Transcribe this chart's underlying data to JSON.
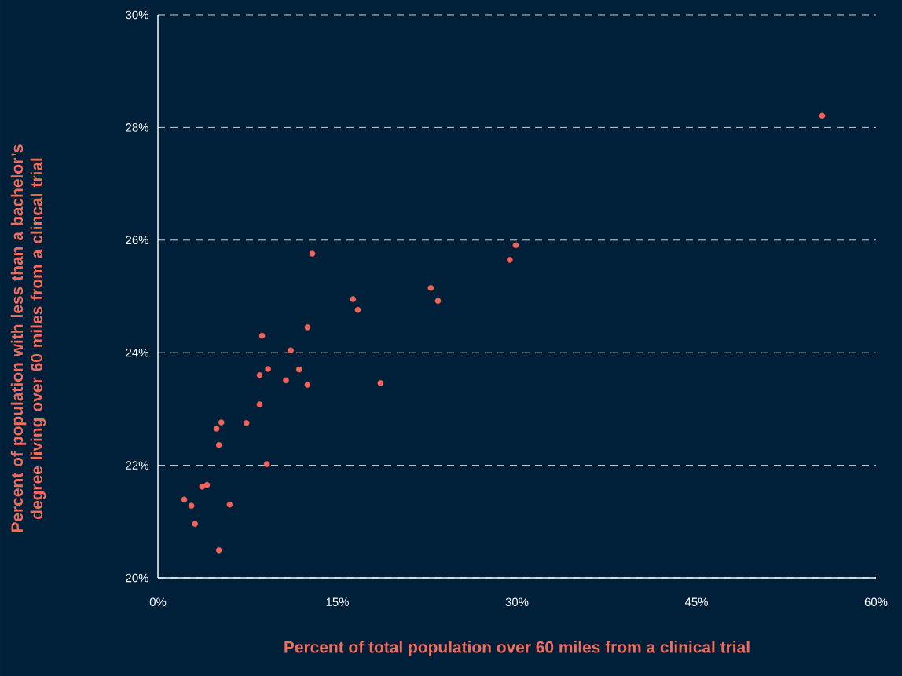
{
  "chart_data": {
    "type": "scatter",
    "xlabel": "Percent of total population over 60 miles from a clinical trial",
    "ylabel": "Percent of population with less than a bachelor’s degree living over 60 miles from a clincal trial",
    "x": [
      2.2,
      2.8,
      3.1,
      3.7,
      4.1,
      4.9,
      5.1,
      5.3,
      5.1,
      6.0,
      7.4,
      8.5,
      8.5,
      8.7,
      9.1,
      9.2,
      10.7,
      11.1,
      11.8,
      12.5,
      12.5,
      12.9,
      16.3,
      16.7,
      18.6,
      22.8,
      23.4,
      29.4,
      29.9,
      55.5
    ],
    "series": [
      {
        "color": "#f4645a",
        "values": [
          21.39,
          21.28,
          20.96,
          21.62,
          21.65,
          22.65,
          22.36,
          22.76,
          20.49,
          21.3,
          22.75,
          23.6,
          23.08,
          24.3,
          22.02,
          23.71,
          23.51,
          24.04,
          23.7,
          24.45,
          23.43,
          25.76,
          24.95,
          24.76,
          23.46,
          25.15,
          24.92,
          25.65,
          25.91,
          28.21
        ]
      }
    ],
    "xlim": [
      0,
      60
    ],
    "ylim": [
      20,
      30
    ],
    "xticks": [
      {
        "value": 0,
        "label": "0%"
      },
      {
        "value": 15,
        "label": "15%"
      },
      {
        "value": 30,
        "label": "30%"
      },
      {
        "value": 45,
        "label": "45%"
      },
      {
        "value": 60,
        "label": "60%"
      }
    ],
    "yticks": [
      {
        "value": 20,
        "label": "20%"
      },
      {
        "value": 22,
        "label": "22%"
      },
      {
        "value": 24,
        "label": "24%"
      },
      {
        "value": 26,
        "label": "26%"
      },
      {
        "value": 28,
        "label": "28%"
      },
      {
        "value": 30,
        "label": "30%"
      }
    ],
    "grid": "y"
  }
}
